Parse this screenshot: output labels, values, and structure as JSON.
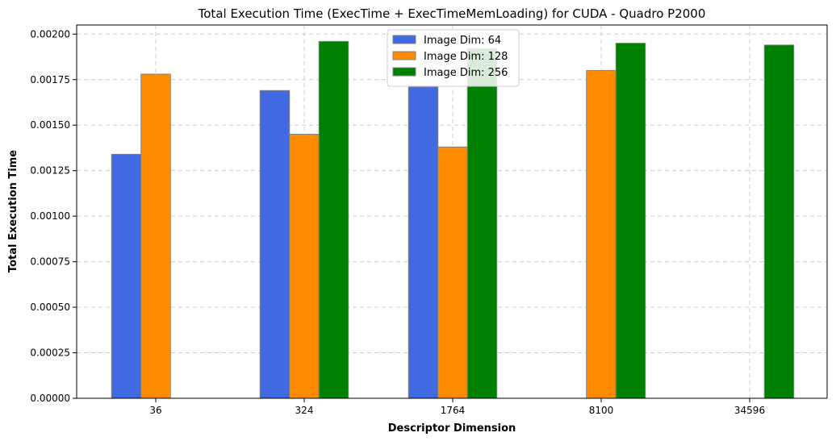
{
  "chart_data": {
    "type": "bar",
    "title": "Total Execution Time (ExecTime + ExecTimeMemLoading) for CUDA - Quadro P2000",
    "xlabel": "Descriptor Dimension",
    "ylabel": "Total Execution Time",
    "categories": [
      "36",
      "324",
      "1764",
      "8100",
      "34596"
    ],
    "ylim": [
      0,
      0.00205
    ],
    "yticks": [
      "0.00000",
      "0.00025",
      "0.00050",
      "0.00075",
      "0.00100",
      "0.00125",
      "0.00150",
      "0.00175",
      "0.00200"
    ],
    "grid": true,
    "legend_position": "top-center",
    "series": [
      {
        "name": "Image Dim: 64",
        "color": "#4169e1",
        "values": [
          0.00134,
          0.00169,
          0.00171,
          null,
          null
        ]
      },
      {
        "name": "Image Dim: 128",
        "color": "#ff8c00",
        "values": [
          0.00178,
          0.00145,
          0.00138,
          0.0018,
          null
        ]
      },
      {
        "name": "Image Dim: 256",
        "color": "#008000",
        "values": [
          null,
          0.00196,
          0.00192,
          0.00195,
          0.00194
        ]
      }
    ]
  }
}
